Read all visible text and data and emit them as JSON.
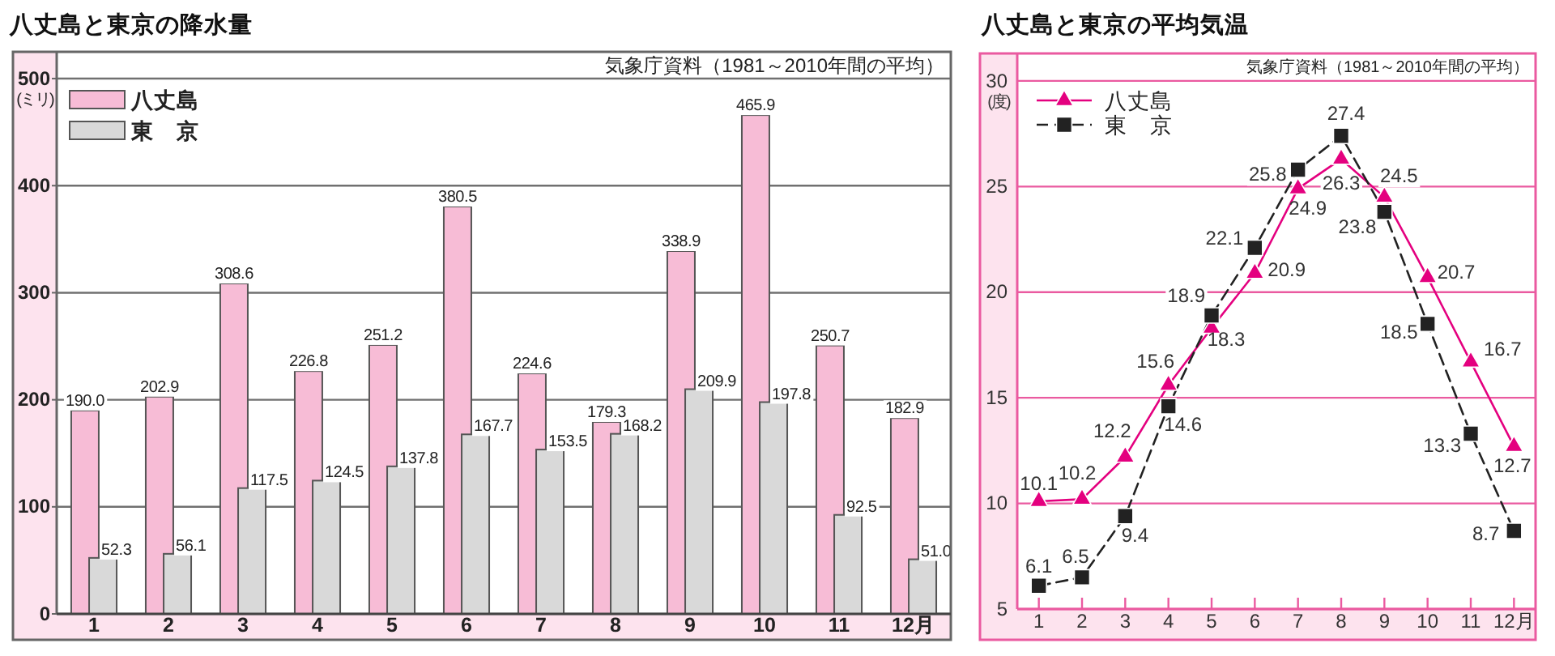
{
  "chart_data": [
    {
      "type": "bar",
      "title": "八丈島と東京の降水量",
      "ylabel": "(ミリ)",
      "annotations": [
        "気象庁資料（1981～2010年間の平均）"
      ],
      "categories": [
        "1",
        "2",
        "3",
        "4",
        "5",
        "6",
        "7",
        "8",
        "9",
        "10",
        "11",
        "12月"
      ],
      "series": [
        {
          "name": "八丈島",
          "color": "#f7bcd6",
          "values": [
            190.0,
            202.9,
            308.6,
            226.8,
            251.2,
            380.5,
            224.6,
            179.3,
            338.9,
            465.9,
            250.7,
            182.9
          ],
          "value_labels": [
            "190.0",
            "202.9",
            "308.6",
            "226.8",
            "251.2",
            "380.5",
            "224.6",
            "179.3",
            "338.9",
            "465.9",
            "250.7",
            "182.9"
          ]
        },
        {
          "name": "東　京",
          "color": "#d9d9d9",
          "values": [
            52.3,
            56.1,
            117.5,
            124.5,
            137.8,
            167.7,
            153.5,
            168.2,
            209.9,
            197.8,
            92.5,
            51.0
          ],
          "value_labels": [
            "52.3",
            "56.1",
            "117.5",
            "124.5",
            "137.8",
            "167.7",
            "153.5",
            "168.2",
            "209.9",
            "197.8",
            "92.5",
            "51.0"
          ]
        }
      ],
      "ylim": [
        0,
        525
      ],
      "yticks": [
        0,
        100,
        200,
        300,
        400,
        500
      ],
      "grid": "y",
      "legend": "top left"
    },
    {
      "type": "line",
      "title": "八丈島と東京の平均気温",
      "ylabel": "(度)",
      "annotations": [
        "気象庁資料（1981～2010年間の平均）"
      ],
      "categories": [
        "1",
        "2",
        "3",
        "4",
        "5",
        "6",
        "7",
        "8",
        "9",
        "10",
        "11",
        "12月"
      ],
      "series": [
        {
          "name": "八丈島",
          "color": "#e4007f",
          "values": [
            10.1,
            10.2,
            12.2,
            15.6,
            18.3,
            20.9,
            24.9,
            26.3,
            24.5,
            20.7,
            16.7,
            12.7
          ],
          "marker": "triangle",
          "line_style": "solid"
        },
        {
          "name": "東　京",
          "color": "#222222",
          "values": [
            6.1,
            6.5,
            9.4,
            14.6,
            18.9,
            22.1,
            25.8,
            27.4,
            23.8,
            18.5,
            13.3,
            8.7
          ],
          "marker": "square",
          "line_style": "dashed"
        }
      ],
      "ylim": [
        5,
        31.3
      ],
      "yticks": [
        5,
        10,
        15,
        20,
        25,
        30
      ],
      "grid": "y",
      "legend": "top left",
      "data_labels": true
    }
  ]
}
